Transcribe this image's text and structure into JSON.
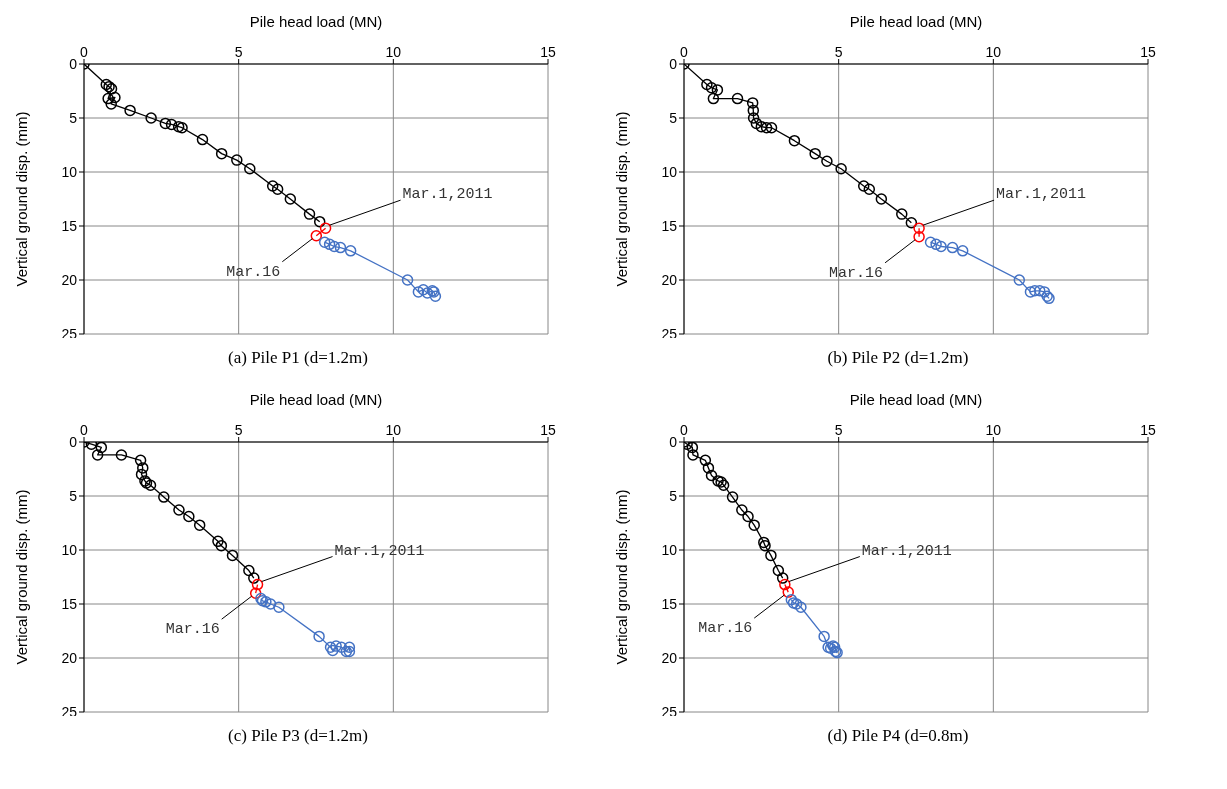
{
  "chart_data": [
    {
      "type": "line",
      "title": "(a) Pile P1 (d=1.2m)",
      "xlabel": "Pile head load (MN)",
      "ylabel": "Vertical ground disp. (mm)",
      "xlim": [
        0,
        15
      ],
      "xticks": [
        0,
        5,
        10,
        15
      ],
      "ylim": [
        25,
        0
      ],
      "yticks": [
        0,
        5,
        10,
        15,
        20,
        25
      ],
      "grid": true,
      "marker": "circle",
      "legend": false,
      "series": [
        {
          "color": "#000000",
          "x": [
            0,
            0.72,
            0.81,
            0.89,
            0.78,
            1.0,
            0.88,
            1.49,
            2.17,
            2.63,
            2.83,
            3.06,
            3.17,
            3.83,
            4.45,
            4.94,
            5.36,
            6.1,
            6.26,
            6.67,
            7.29,
            7.62
          ],
          "values": [
            0,
            1.9,
            2.1,
            2.3,
            3.2,
            3.1,
            3.7,
            4.3,
            5.0,
            5.5,
            5.6,
            5.8,
            5.9,
            7.0,
            8.3,
            8.9,
            9.7,
            11.3,
            11.6,
            12.5,
            13.9,
            14.6
          ]
        },
        {
          "color": "#ff0000",
          "x": [
            7.81,
            7.51
          ],
          "values": [
            15.2,
            15.9
          ]
        },
        {
          "color": "#4472c4",
          "x": [
            7.78,
            7.94,
            8.09,
            8.29,
            8.62,
            10.46,
            10.81,
            10.97,
            11.1,
            11.26,
            11.31,
            11.36
          ],
          "values": [
            16.5,
            16.7,
            16.9,
            17.0,
            17.3,
            20.0,
            21.1,
            20.9,
            21.2,
            21.0,
            21.1,
            21.5
          ]
        }
      ],
      "annotations": [
        {
          "text": "Mar.1,2011",
          "x": 7.81,
          "y": 15.2
        },
        {
          "text": "Mar.16",
          "x": 7.51,
          "y": 15.9
        }
      ]
    },
    {
      "type": "line",
      "title": "(b) Pile P2 (d=1.2m)",
      "xlabel": "Pile head load (MN)",
      "ylabel": "Vertical ground disp. (mm)",
      "xlim": [
        0,
        15
      ],
      "xticks": [
        0,
        5,
        10,
        15
      ],
      "ylim": [
        25,
        0
      ],
      "yticks": [
        0,
        5,
        10,
        15,
        20,
        25
      ],
      "grid": true,
      "marker": "circle",
      "legend": false,
      "series": [
        {
          "color": "#000000",
          "x": [
            0,
            0.74,
            0.89,
            1.08,
            0.95,
            1.73,
            2.22,
            2.24,
            2.25,
            2.34,
            2.5,
            2.67,
            2.83,
            3.57,
            4.24,
            4.62,
            5.08,
            5.81,
            5.99,
            6.38,
            7.04,
            7.35
          ],
          "values": [
            0,
            1.9,
            2.2,
            2.4,
            3.2,
            3.2,
            3.6,
            4.3,
            5.0,
            5.5,
            5.8,
            5.9,
            5.9,
            7.1,
            8.3,
            9.0,
            9.7,
            11.3,
            11.6,
            12.5,
            13.9,
            14.7
          ]
        },
        {
          "color": "#ff0000",
          "x": [
            7.6,
            7.6
          ],
          "values": [
            15.2,
            16.0
          ]
        },
        {
          "color": "#4472c4",
          "x": [
            7.97,
            8.15,
            8.31,
            8.68,
            9.01,
            10.84,
            11.2,
            11.34,
            11.5,
            11.65,
            11.74,
            11.8
          ],
          "values": [
            16.5,
            16.7,
            16.9,
            17.0,
            17.3,
            20.0,
            21.1,
            21.0,
            21.0,
            21.1,
            21.5,
            21.7
          ]
        }
      ],
      "annotations": [
        {
          "text": "Mar.1,2011",
          "x": 7.6,
          "y": 15.2
        },
        {
          "text": "Mar.16",
          "x": 7.6,
          "y": 16.0
        }
      ]
    },
    {
      "type": "line",
      "title": "(c) Pile P3 (d=1.2m)",
      "xlabel": "Pile head load (MN)",
      "ylabel": "Vertical ground disp. (mm)",
      "xlim": [
        0,
        15
      ],
      "xticks": [
        0,
        5,
        10,
        15
      ],
      "ylim": [
        25,
        0
      ],
      "yticks": [
        0,
        5,
        10,
        15,
        20,
        25
      ],
      "grid": true,
      "marker": "circle",
      "legend": false,
      "series": [
        {
          "color": "#000000",
          "x": [
            0,
            0.24,
            0.56,
            0.44,
            1.21,
            1.83,
            1.9,
            1.86,
            1.97,
            2.02,
            2.15,
            2.58,
            3.07,
            3.39,
            3.74,
            4.33,
            4.44,
            4.8,
            5.33,
            5.49
          ],
          "values": [
            0,
            0.2,
            0.5,
            1.2,
            1.2,
            1.7,
            2.4,
            3.0,
            3.6,
            3.8,
            4.0,
            5.1,
            6.3,
            6.9,
            7.7,
            9.2,
            9.6,
            10.5,
            11.9,
            12.6
          ]
        },
        {
          "color": "#ff0000",
          "x": [
            5.61,
            5.55
          ],
          "values": [
            13.2,
            14.0
          ]
        },
        {
          "color": "#4472c4",
          "x": [
            5.72,
            5.77,
            5.88,
            6.03,
            6.3,
            7.6,
            7.97,
            8.04,
            8.15,
            8.32,
            8.48,
            8.58,
            8.58
          ],
          "values": [
            14.5,
            14.7,
            14.8,
            15.0,
            15.3,
            18.0,
            19.0,
            19.3,
            18.9,
            19.0,
            19.4,
            19.0,
            19.4
          ]
        }
      ],
      "annotations": [
        {
          "text": "Mar.1,2011",
          "x": 5.61,
          "y": 13.2
        },
        {
          "text": "Mar.16",
          "x": 5.55,
          "y": 14.0
        }
      ]
    },
    {
      "type": "line",
      "title": "(d) Pile P4 (d=0.8m)",
      "xlabel": "Pile head load (MN)",
      "ylabel": "Vertical ground disp. (mm)",
      "xlim": [
        0,
        15
      ],
      "xticks": [
        0,
        5,
        10,
        15
      ],
      "ylim": [
        25,
        0
      ],
      "yticks": [
        0,
        5,
        10,
        15,
        20,
        25
      ],
      "grid": true,
      "marker": "circle",
      "legend": false,
      "series": [
        {
          "color": "#000000",
          "x": [
            0,
            0.1,
            0.27,
            0.29,
            0.69,
            0.79,
            0.89,
            1.1,
            1.2,
            1.28,
            1.57,
            1.87,
            2.07,
            2.27,
            2.58,
            2.62,
            2.81,
            3.05,
            3.19
          ],
          "values": [
            0,
            0.2,
            0.5,
            1.2,
            1.7,
            2.4,
            3.1,
            3.6,
            3.7,
            4.0,
            5.1,
            6.3,
            6.9,
            7.7,
            9.3,
            9.6,
            10.5,
            11.9,
            12.6
          ]
        },
        {
          "color": "#ff0000",
          "x": [
            3.26,
            3.37
          ],
          "values": [
            13.2,
            13.9
          ]
        },
        {
          "color": "#4472c4",
          "x": [
            3.47,
            3.54,
            3.64,
            3.78,
            4.53,
            4.66,
            4.74,
            4.82,
            4.87,
            4.95,
            4.9
          ],
          "values": [
            14.6,
            14.9,
            15.0,
            15.3,
            18.0,
            19.0,
            19.1,
            18.9,
            19.0,
            19.5,
            19.4
          ]
        }
      ],
      "annotations": [
        {
          "text": "Mar.1,2011",
          "x": 3.26,
          "y": 13.2
        },
        {
          "text": "Mar.16",
          "x": 3.37,
          "y": 13.9
        }
      ]
    }
  ]
}
